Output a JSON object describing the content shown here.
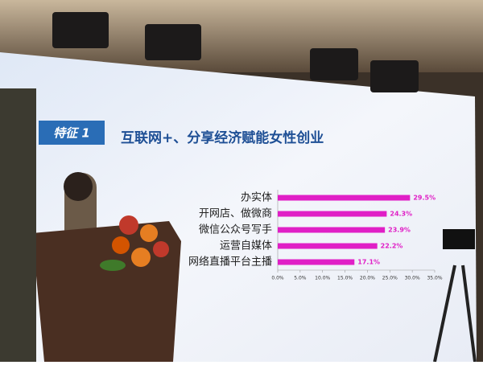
{
  "chart_data": {
    "type": "bar",
    "orientation": "horizontal",
    "badge": "特征 1",
    "title": "互联网+、分享经济赋能女性创业",
    "categories": [
      "办实体",
      "开网店、做微商",
      "微信公众号写手",
      "运营自媒体",
      "网络直播平台主播"
    ],
    "values": [
      29.5,
      24.3,
      23.9,
      22.2,
      17.1
    ],
    "value_labels": [
      "29.5%",
      "24.3%",
      "23.9%",
      "22.2%",
      "17.1%"
    ],
    "color": "#e01fc6",
    "xlim": [
      0,
      35
    ],
    "xticks": [
      {
        "value": 0,
        "label": "0.0%"
      },
      {
        "value": 5,
        "label": "5.0%"
      },
      {
        "value": 10,
        "label": "10.0%"
      },
      {
        "value": 15,
        "label": "15.0%"
      },
      {
        "value": 20,
        "label": "20.0%"
      },
      {
        "value": 25,
        "label": "25.0%"
      },
      {
        "value": 30,
        "label": "30.0%"
      },
      {
        "value": 35,
        "label": "35.0%"
      }
    ]
  }
}
